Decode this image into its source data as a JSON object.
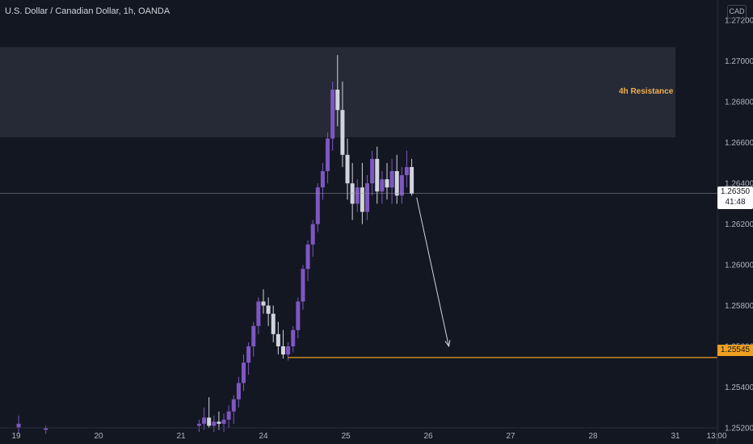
{
  "title": "U.S. Dollar / Canadian Dollar, 1h, OANDA",
  "currency": "CAD",
  "colors": {
    "background": "#131722",
    "bull": "#7e57c2",
    "bear": "#d1d4dc",
    "support": "#f0a020",
    "zone": "#2a2e39",
    "text": "#b2b5be"
  },
  "chart_data": {
    "type": "candlestick",
    "title": "U.S. Dollar / Canadian Dollar, 1h, OANDA",
    "ylim": [
      1.2518,
      1.273
    ],
    "xlim": [
      19,
      32.5
    ],
    "y_ticks": [
      "1.27200",
      "1.27000",
      "1.26800",
      "1.26600",
      "1.26400",
      "1.26200",
      "1.26000",
      "1.25800",
      "1.25600",
      "1.25400",
      "1.25200"
    ],
    "x_ticks": [
      {
        "label": "19",
        "value": 19
      },
      {
        "label": "20",
        "value": 20
      },
      {
        "label": "21",
        "value": 21
      },
      {
        "label": "24",
        "value": 22
      },
      {
        "label": "25",
        "value": 23
      },
      {
        "label": "26",
        "value": 24
      },
      {
        "label": "27",
        "value": 25
      },
      {
        "label": "28",
        "value": 26
      },
      {
        "label": "31",
        "value": 27
      },
      {
        "label": "13:00",
        "value": 27.5
      }
    ],
    "candles": [
      [
        21.22,
        1.2521,
        1.2524,
        1.2518,
        1.2522
      ],
      [
        21.28,
        1.2522,
        1.253,
        1.2519,
        1.2525
      ],
      [
        21.34,
        1.2525,
        1.2535,
        1.252,
        1.2521
      ],
      [
        21.4,
        1.2521,
        1.2526,
        1.2518,
        1.2523
      ],
      [
        21.46,
        1.2523,
        1.2528,
        1.2519,
        1.2522
      ],
      [
        21.52,
        1.2522,
        1.2527,
        1.2518,
        1.2524
      ],
      [
        21.58,
        1.2524,
        1.2531,
        1.252,
        1.2528
      ],
      [
        21.64,
        1.2528,
        1.2536,
        1.2522,
        1.2534
      ],
      [
        21.7,
        1.2534,
        1.2545,
        1.253,
        1.2542
      ],
      [
        21.76,
        1.2542,
        1.2556,
        1.2538,
        1.2552
      ],
      [
        21.82,
        1.2552,
        1.2562,
        1.2546,
        1.256
      ],
      [
        21.88,
        1.256,
        1.2572,
        1.2555,
        1.257
      ],
      [
        21.94,
        1.257,
        1.2584,
        1.2566,
        1.2582
      ],
      [
        22.0,
        1.2582,
        1.2588,
        1.2576,
        1.258
      ],
      [
        22.06,
        1.258,
        1.2584,
        1.257,
        1.2576
      ],
      [
        22.12,
        1.2576,
        1.258,
        1.2562,
        1.2566
      ],
      [
        22.18,
        1.2566,
        1.2572,
        1.2556,
        1.256
      ],
      [
        22.24,
        1.256,
        1.2568,
        1.2554,
        1.2556
      ],
      [
        22.3,
        1.2556,
        1.2562,
        1.2553,
        1.256
      ],
      [
        22.36,
        1.256,
        1.257,
        1.2557,
        1.2568
      ],
      [
        22.42,
        1.2568,
        1.2584,
        1.2564,
        1.2582
      ],
      [
        22.48,
        1.2582,
        1.26,
        1.2578,
        1.2598
      ],
      [
        22.54,
        1.2598,
        1.2612,
        1.2592,
        1.261
      ],
      [
        22.6,
        1.261,
        1.2622,
        1.2604,
        1.262
      ],
      [
        22.66,
        1.262,
        1.264,
        1.2616,
        1.2638
      ],
      [
        22.72,
        1.2638,
        1.265,
        1.2632,
        1.2646
      ],
      [
        22.78,
        1.2646,
        1.2665,
        1.264,
        1.2662
      ],
      [
        22.84,
        1.2662,
        1.269,
        1.2656,
        1.2686
      ],
      [
        22.9,
        1.2686,
        1.2703,
        1.2668,
        1.2676
      ],
      [
        22.96,
        1.2676,
        1.269,
        1.2648,
        1.2654
      ],
      [
        23.02,
        1.2654,
        1.2662,
        1.2632,
        1.264
      ],
      [
        23.08,
        1.264,
        1.265,
        1.2622,
        1.263
      ],
      [
        23.14,
        1.263,
        1.2642,
        1.2626,
        1.2638
      ],
      [
        23.2,
        1.2638,
        1.265,
        1.262,
        1.2626
      ],
      [
        23.26,
        1.2626,
        1.2644,
        1.2622,
        1.264
      ],
      [
        23.32,
        1.264,
        1.2656,
        1.2634,
        1.2652
      ],
      [
        23.38,
        1.2652,
        1.2658,
        1.263,
        1.2636
      ],
      [
        23.44,
        1.2636,
        1.2646,
        1.263,
        1.2642
      ],
      [
        23.5,
        1.2642,
        1.265,
        1.2632,
        1.2638
      ],
      [
        23.56,
        1.2638,
        1.2652,
        1.263,
        1.2646
      ],
      [
        23.62,
        1.2646,
        1.2654,
        1.263,
        1.2634
      ],
      [
        23.68,
        1.2634,
        1.2648,
        1.263,
        1.2644
      ],
      [
        23.74,
        1.2644,
        1.2656,
        1.2638,
        1.2648
      ],
      [
        23.8,
        1.2648,
        1.2652,
        1.2634,
        1.2635
      ]
    ],
    "extra_candles": [
      [
        19.03,
        1.252,
        1.2526,
        1.2517,
        1.2522
      ],
      [
        19.36,
        1.2519,
        1.2521,
        1.2517,
        1.252
      ]
    ],
    "annotations": [
      {
        "type": "zone",
        "label": "4h Resistance",
        "y_from": 1.26626,
        "y_to": 1.27068,
        "x_from": 19,
        "x_to": 27.0
      },
      {
        "type": "hline",
        "value": 1.25545,
        "label": "1.25545",
        "x_from": 22.3
      },
      {
        "type": "hline",
        "value": 1.2635,
        "label": "1.26350",
        "sublabel": "41:48"
      },
      {
        "type": "arrow",
        "from": [
          23.86,
          1.2633
        ],
        "to": [
          24.25,
          1.256
        ]
      }
    ]
  }
}
